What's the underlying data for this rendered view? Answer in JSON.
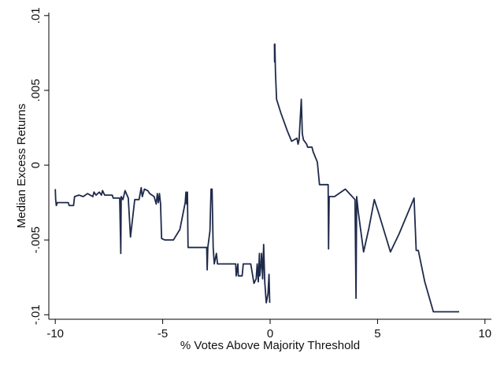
{
  "chart_data": {
    "type": "line",
    "title": "",
    "xlabel": "% Votes Above Majority Threshold",
    "ylabel": "Median Excess Returns",
    "xlim": [
      -10.3,
      10.3
    ],
    "ylim": [
      -0.0103,
      0.0102
    ],
    "grid": false,
    "legend": "none",
    "x_ticks": [
      {
        "value": -10,
        "label": "-10"
      },
      {
        "value": -5,
        "label": "-5"
      },
      {
        "value": 0,
        "label": "0"
      },
      {
        "value": 5,
        "label": "5"
      },
      {
        "value": 10,
        "label": "10"
      }
    ],
    "y_ticks": [
      {
        "value": -0.01,
        "label": "-.01"
      },
      {
        "value": -0.005,
        "label": "-.005"
      },
      {
        "value": 0,
        "label": "0"
      },
      {
        "value": 0.005,
        "label": ".005"
      },
      {
        "value": 0.01,
        "label": ".01"
      }
    ],
    "series": [
      {
        "segment": "left",
        "color": "#1f2a4a",
        "points": [
          [
            -10.0,
            -0.0016
          ],
          [
            -9.98,
            -0.0023
          ],
          [
            -9.95,
            -0.0027
          ],
          [
            -9.9,
            -0.0025
          ],
          [
            -9.7,
            -0.0025
          ],
          [
            -9.4,
            -0.0025
          ],
          [
            -9.35,
            -0.0027
          ],
          [
            -9.15,
            -0.0027
          ],
          [
            -9.1,
            -0.0021
          ],
          [
            -8.9,
            -0.002
          ],
          [
            -8.7,
            -0.0021
          ],
          [
            -8.5,
            -0.0019
          ],
          [
            -8.25,
            -0.0021
          ],
          [
            -8.2,
            -0.0018
          ],
          [
            -8.1,
            -0.002
          ],
          [
            -7.95,
            -0.0018
          ],
          [
            -7.85,
            -0.002
          ],
          [
            -7.8,
            -0.0017
          ],
          [
            -7.7,
            -0.002
          ],
          [
            -7.5,
            -0.002
          ],
          [
            -7.35,
            -0.002
          ],
          [
            -7.3,
            -0.0022
          ],
          [
            -7.0,
            -0.0022
          ],
          [
            -6.95,
            -0.0059
          ],
          [
            -6.93,
            -0.0021
          ],
          [
            -6.85,
            -0.0023
          ],
          [
            -6.75,
            -0.0017
          ],
          [
            -6.6,
            -0.0022
          ],
          [
            -6.5,
            -0.0048
          ],
          [
            -6.3,
            -0.0023
          ],
          [
            -6.1,
            -0.0023
          ],
          [
            -6.0,
            -0.0015
          ],
          [
            -5.95,
            -0.0021
          ],
          [
            -5.85,
            -0.0016
          ],
          [
            -5.7,
            -0.0017
          ],
          [
            -5.6,
            -0.0019
          ],
          [
            -5.4,
            -0.0021
          ],
          [
            -5.3,
            -0.0026
          ],
          [
            -5.25,
            -0.0019
          ],
          [
            -5.2,
            -0.0025
          ],
          [
            -5.15,
            -0.0019
          ],
          [
            -5.1,
            -0.0026
          ],
          [
            -5.05,
            -0.0049
          ],
          [
            -4.9,
            -0.005
          ],
          [
            -4.5,
            -0.005
          ],
          [
            -4.2,
            -0.0043
          ],
          [
            -3.95,
            -0.0025
          ],
          [
            -3.92,
            -0.0018
          ],
          [
            -3.88,
            -0.0026
          ],
          [
            -3.85,
            -0.0018
          ],
          [
            -3.82,
            -0.0055
          ],
          [
            -3.5,
            -0.0055
          ],
          [
            -3.2,
            -0.0055
          ],
          [
            -2.95,
            -0.0055
          ],
          [
            -2.93,
            -0.007
          ],
          [
            -2.9,
            -0.0055
          ],
          [
            -2.8,
            -0.0044
          ],
          [
            -2.75,
            -0.0016
          ],
          [
            -2.7,
            -0.0016
          ],
          [
            -2.65,
            -0.0055
          ],
          [
            -2.6,
            -0.0066
          ],
          [
            -2.5,
            -0.0059
          ],
          [
            -2.45,
            -0.0066
          ],
          [
            -2.0,
            -0.0066
          ],
          [
            -1.6,
            -0.0066
          ],
          [
            -1.58,
            -0.0074
          ],
          [
            -1.5,
            -0.0066
          ],
          [
            -1.48,
            -0.0074
          ],
          [
            -1.3,
            -0.0074
          ],
          [
            -1.25,
            -0.0066
          ],
          [
            -0.9,
            -0.0066
          ],
          [
            -0.75,
            -0.0079
          ],
          [
            -0.65,
            -0.0076
          ],
          [
            -0.6,
            -0.0066
          ],
          [
            -0.55,
            -0.0078
          ],
          [
            -0.5,
            -0.0059
          ],
          [
            -0.48,
            -0.0074
          ],
          [
            -0.42,
            -0.0066
          ],
          [
            -0.4,
            -0.0059
          ],
          [
            -0.35,
            -0.0076
          ],
          [
            -0.3,
            -0.0053
          ],
          [
            -0.25,
            -0.0078
          ],
          [
            -0.18,
            -0.0092
          ],
          [
            -0.1,
            -0.0086
          ],
          [
            -0.05,
            -0.0073
          ],
          [
            -0.02,
            -0.0092
          ]
        ]
      },
      {
        "segment": "right",
        "color": "#1f2a4a",
        "points": [
          [
            0.2,
            0.0081
          ],
          [
            0.21,
            0.0069
          ],
          [
            0.22,
            0.0081
          ],
          [
            0.25,
            0.0062
          ],
          [
            0.3,
            0.0044
          ],
          [
            0.5,
            0.0035
          ],
          [
            0.8,
            0.0023
          ],
          [
            1.0,
            0.0016
          ],
          [
            1.25,
            0.0018
          ],
          [
            1.3,
            0.0014
          ],
          [
            1.35,
            0.0017
          ],
          [
            1.45,
            0.0044
          ],
          [
            1.5,
            0.0021
          ],
          [
            1.55,
            0.0017
          ],
          [
            1.7,
            0.0014
          ],
          [
            1.75,
            0.0012
          ],
          [
            1.95,
            0.0012
          ],
          [
            2.0,
            0.0009
          ],
          [
            2.2,
            0.0002
          ],
          [
            2.3,
            -0.0013
          ],
          [
            2.6,
            -0.0013
          ],
          [
            2.7,
            -0.0013
          ],
          [
            2.72,
            -0.0056
          ],
          [
            2.75,
            -0.0021
          ],
          [
            3.0,
            -0.0021
          ],
          [
            3.5,
            -0.0016
          ],
          [
            3.95,
            -0.0023
          ],
          [
            4.0,
            -0.0089
          ],
          [
            4.03,
            -0.0021
          ],
          [
            4.1,
            -0.0031
          ],
          [
            4.35,
            -0.0058
          ],
          [
            4.6,
            -0.0042
          ],
          [
            4.85,
            -0.0023
          ],
          [
            5.05,
            -0.0032
          ],
          [
            5.6,
            -0.0058
          ],
          [
            6.0,
            -0.0046
          ],
          [
            6.7,
            -0.0022
          ],
          [
            6.8,
            -0.0057
          ],
          [
            6.9,
            -0.0057
          ],
          [
            7.2,
            -0.0078
          ],
          [
            7.6,
            -0.0098
          ],
          [
            8.8,
            -0.0098
          ]
        ]
      }
    ]
  }
}
